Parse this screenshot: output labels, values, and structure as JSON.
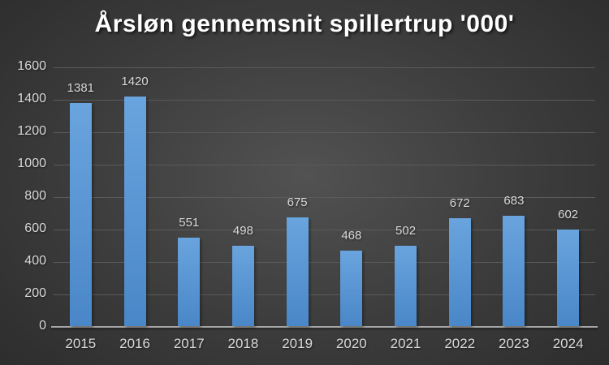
{
  "title": "Årsløn gennemsnit spillertrup '000'",
  "colors": {
    "background_center": "#525252",
    "background_edge": "#262626",
    "bar_top": "#69a4de",
    "bar_bottom": "#4a87c8",
    "gridline": "#5a5a5a",
    "axis_line": "#a6a6a6",
    "tick_label": "#d9d9d9",
    "data_label": "#d9d9d9",
    "title_color": "#ffffff"
  },
  "chart_data": {
    "type": "bar",
    "title": "Årsløn gennemsnit spillertrup '000'",
    "categories": [
      "2015",
      "2016",
      "2017",
      "2018",
      "2019",
      "2020",
      "2021",
      "2022",
      "2023",
      "2024"
    ],
    "values": [
      1381,
      1420,
      551,
      498,
      675,
      468,
      502,
      672,
      683,
      602
    ],
    "xlabel": "",
    "ylabel": "",
    "ylim": [
      0,
      1600
    ],
    "ytick_step": 200,
    "grid": true,
    "legend": false,
    "data_labels": true
  }
}
